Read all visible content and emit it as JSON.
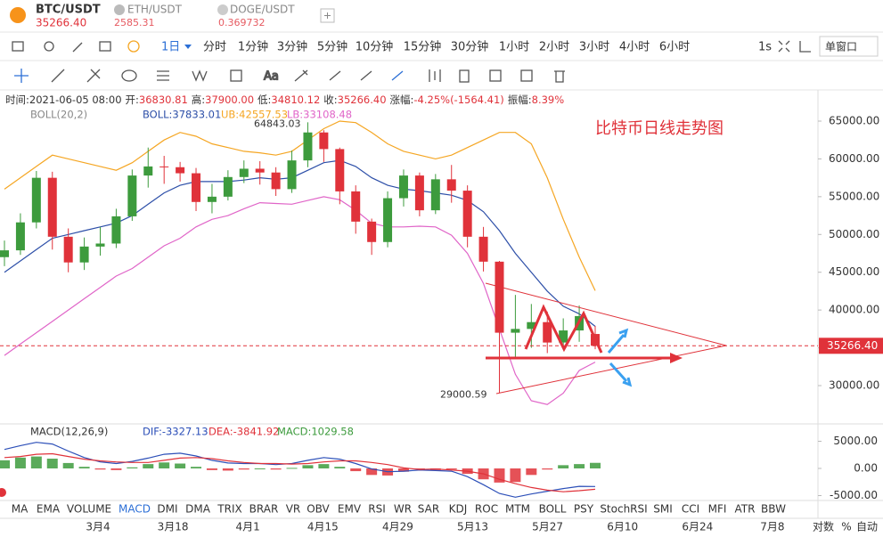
{
  "tabs": [
    {
      "symbol": "BTC/USDT",
      "price": "35266.40"
    },
    {
      "symbol": "ETH/USDT",
      "price": "2585.31"
    },
    {
      "symbol": "DOGE/USDT",
      "price": "0.369732"
    }
  ],
  "toolbar": {
    "interval": "1日",
    "intervals": [
      "分时",
      "1分钟",
      "3分钟",
      "5分钟",
      "10分钟",
      "15分钟",
      "30分钟",
      "1小时",
      "2小时",
      "3小时",
      "4小时",
      "6小时"
    ],
    "refresh": "1s",
    "window": "单窗口"
  },
  "info": [
    {
      "label": "时间:",
      "value": "2021-06-05 08:00"
    },
    {
      "label": "开:",
      "value": "36830.81"
    },
    {
      "label": "高:",
      "value": "37900.00"
    },
    {
      "label": "低:",
      "value": "34810.12"
    },
    {
      "label": "收:",
      "value": "35266.40"
    },
    {
      "label": "涨幅:",
      "value": "-4.25%(-1564.41)"
    },
    {
      "label": "振幅:",
      "value": "8.39%"
    }
  ],
  "chart_data": {
    "type": "candlestick",
    "title": "比特币日线走势图",
    "up_color": "#3d9b3d",
    "down_color": "#e0323a",
    "ylim": [
      25050,
      66886
    ],
    "yticks": [
      {
        "value": 65000,
        "label": "65000.00"
      },
      {
        "value": 60000,
        "label": "60000.00"
      },
      {
        "value": 55000,
        "label": "55000.00"
      },
      {
        "value": 50000,
        "label": "50000.00"
      },
      {
        "value": 45000,
        "label": "45000.00"
      },
      {
        "value": 40000,
        "label": "40000.00"
      },
      {
        "value": 35000,
        "label": "35000.00"
      },
      {
        "value": 30000,
        "label": "30000.00"
      }
    ],
    "current_price": {
      "value": 35266.4,
      "label": "35266.40"
    },
    "dates": [
      "3月4",
      "3月18",
      "4月1",
      "4月15",
      "4月29",
      "5月13",
      "5月27",
      "6月10",
      "6月24",
      "7月8"
    ],
    "candles": {
      "open": [
        47000,
        47900,
        51600,
        57500,
        49700,
        46300,
        48400,
        48800,
        52400,
        57800,
        59000,
        58900,
        58100,
        54300,
        55000,
        57600,
        58700,
        58200,
        56000,
        59800,
        63500,
        61300,
        55700,
        51700,
        49000,
        54800,
        57800,
        53200,
        57300,
        55800,
        49700,
        46400,
        37000,
        37500,
        38400,
        35700,
        37300,
        36830.81
      ],
      "high": [
        49200,
        52800,
        58400,
        58300,
        50800,
        49600,
        51000,
        53400,
        58600,
        61500,
        60400,
        59600,
        58800,
        56700,
        58500,
        59800,
        59700,
        58900,
        61100,
        64843.03,
        63800,
        61500,
        56500,
        52100,
        55700,
        58600,
        58200,
        58000,
        59200,
        56500,
        51000,
        46500,
        42000,
        40800,
        39800,
        38900,
        40600,
        37900
      ],
      "low": [
        45800,
        47300,
        50800,
        48000,
        45000,
        45300,
        47200,
        48200,
        51800,
        56200,
        56700,
        57000,
        53100,
        52800,
        54500,
        56800,
        56600,
        55100,
        55500,
        58900,
        59600,
        54000,
        50100,
        47300,
        48300,
        53700,
        52400,
        52700,
        54200,
        48300,
        45100,
        29000.59,
        33600,
        35000,
        34300,
        34900,
        35800,
        34810.12
      ],
      "close": [
        47900,
        51600,
        57500,
        49700,
        46300,
        48400,
        48800,
        52400,
        57800,
        59000,
        58900,
        58100,
        54300,
        55000,
        57600,
        58700,
        58200,
        56000,
        59800,
        63500,
        61300,
        55700,
        51700,
        49000,
        54800,
        57800,
        53200,
        57300,
        55800,
        49700,
        46400,
        37000,
        37500,
        38400,
        35700,
        37300,
        39200,
        35266.4
      ]
    },
    "high_mark": 19,
    "low_mark": 31,
    "boll": {
      "label": "BOLL(20,2)",
      "mid_label": "BOLL:37833.01",
      "ub_label": "UB:42557.53",
      "lb_label": "LB:33108.48",
      "mid_color": "#2d4fa8",
      "upper_color": "#f5a623",
      "lower_color": "#e065c8",
      "mid": [
        45000,
        46500,
        48000,
        49500,
        50000,
        50500,
        51000,
        51500,
        52500,
        54000,
        55500,
        56500,
        57000,
        57000,
        57000,
        57200,
        57500,
        57300,
        57500,
        58500,
        59500,
        59800,
        59000,
        57500,
        56500,
        56000,
        55800,
        55500,
        55200,
        54500,
        53000,
        50500,
        47500,
        45000,
        42500,
        40500,
        39500,
        37833.01
      ],
      "upper": [
        56000,
        57500,
        59000,
        60500,
        60000,
        59500,
        59000,
        58500,
        59500,
        61000,
        62500,
        63500,
        63000,
        62000,
        61500,
        61000,
        60800,
        60500,
        61000,
        62500,
        64000,
        65000,
        64800,
        63500,
        62000,
        61000,
        60500,
        60000,
        60500,
        61500,
        62500,
        63500,
        63500,
        62000,
        57500,
        52000,
        47000,
        42557.53
      ],
      "lower": [
        34000,
        35500,
        37000,
        38500,
        40000,
        41500,
        43000,
        44500,
        45500,
        47000,
        48500,
        49500,
        51000,
        52000,
        52500,
        53400,
        54200,
        54100,
        54000,
        54500,
        55000,
        54600,
        53200,
        51500,
        51000,
        51000,
        51100,
        51000,
        49900,
        47500,
        43500,
        37500,
        31500,
        28000,
        27500,
        29000,
        32000,
        33108.48
      ]
    },
    "macd": {
      "label": "MACD(12,26,9)",
      "dif_label": "DIF:-3327.13",
      "dea_label": "DEA:-3841.92",
      "macd_label": "MACD:1029.58",
      "ylim": [
        -5900,
        7870
      ],
      "yticks": [
        {
          "value": 5000,
          "label": "5000.00"
        },
        {
          "value": 0,
          "label": "0.00"
        },
        {
          "value": -5000,
          "label": "-5000.00"
        }
      ],
      "dif_color": "#2c4fb8",
      "dea_color": "#e0323a",
      "hist": [
        1500,
        2000,
        2200,
        1800,
        1000,
        300,
        -200,
        -300,
        200,
        800,
        1100,
        900,
        300,
        -300,
        -400,
        -200,
        0,
        -200,
        100,
        600,
        800,
        300,
        -500,
        -1200,
        -1300,
        -600,
        -100,
        -300,
        -200,
        -1000,
        -2000,
        -2600,
        -2500,
        -1200,
        -200,
        600,
        800,
        1029.58
      ],
      "dif": [
        3500,
        4200,
        4800,
        4500,
        3200,
        2000,
        1200,
        900,
        1300,
        1900,
        2600,
        2800,
        2300,
        1500,
        1000,
        900,
        900,
        700,
        900,
        1500,
        2000,
        1700,
        900,
        -100,
        -600,
        -500,
        -300,
        -400,
        -500,
        -1500,
        -3000,
        -4600,
        -5300,
        -4700,
        -4200,
        -3700,
        -3300,
        -3327.13
      ],
      "dea": [
        2000,
        2200,
        2600,
        2700,
        2200,
        1700,
        1400,
        1200,
        1100,
        1100,
        1500,
        1900,
        2000,
        1800,
        1400,
        1100,
        900,
        900,
        800,
        900,
        1200,
        1400,
        1400,
        1100,
        700,
        100,
        -200,
        -100,
        -300,
        -500,
        -1000,
        -2000,
        -2800,
        -3500,
        -4000,
        -4300,
        -4100,
        -3841.92
      ]
    }
  },
  "indicators": [
    "MA",
    "EMA",
    "VOLUME",
    "MACD",
    "DMI",
    "DMA",
    "TRIX",
    "BRAR",
    "VR",
    "OBV",
    "EMV",
    "RSI",
    "WR",
    "SAR",
    "KDJ",
    "ROC",
    "MTM",
    "BOLL",
    "PSY",
    "StochRSI",
    "SMI",
    "CCI",
    "MFI",
    "ATR",
    "BBW"
  ],
  "active_indicator": 3,
  "scale_options": [
    "对数",
    "%",
    "自动"
  ]
}
